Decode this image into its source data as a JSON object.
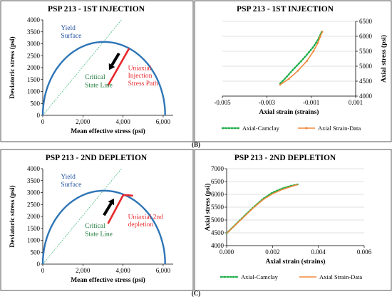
{
  "captions": [
    "(B)",
    "(C)"
  ],
  "colors": {
    "yield": "#2e75b6",
    "csl": "#5bc28c",
    "stress_path": "#e8282b",
    "arrow": "#000000",
    "camclay": "#1fae4a",
    "data": "#f0883a",
    "blue_text": "#1f4e9c",
    "green_text": "#1e7a3a",
    "red_text": "#e8282b"
  },
  "chart_data": [
    {
      "id": "b-left",
      "type": "line",
      "title": "PSP 213 - 1ST INJECTION",
      "xlabel": "Mean effective stress (psi)",
      "ylabel": "Deviatoric stress (psi)",
      "xlim": [
        0,
        6500
      ],
      "ylim": [
        0,
        4000
      ],
      "xticks": [
        0,
        2000,
        4000,
        6000
      ],
      "xtick_labels": [
        "0",
        "2,000",
        "4,000",
        "6,000"
      ],
      "yticks": [
        0,
        500,
        1000,
        1500,
        2000,
        2500,
        3000,
        3500,
        4000
      ],
      "ytick_labels": [
        "0",
        "500",
        "1000",
        "1500",
        "2000",
        "2500",
        "3000",
        "3500",
        "4000"
      ],
      "yield_surface": {
        "p0": 6100,
        "q_peak": 3080
      },
      "critical_state_line": {
        "slope": 1.02
      },
      "stress_path": {
        "x": [
          3250,
          4300
        ],
        "y": [
          1250,
          2800
        ]
      },
      "arrow": {
        "from": [
          3800,
          2600
        ],
        "to": [
          3300,
          1900
        ]
      },
      "annotations": [
        {
          "text": "Yield",
          "x": 900,
          "y": 3580,
          "color": "blue"
        },
        {
          "text": "Surface",
          "x": 900,
          "y": 3250,
          "color": "blue"
        },
        {
          "text": "Critical",
          "x": 2100,
          "y": 1520,
          "color": "green"
        },
        {
          "text": "State Line",
          "x": 2100,
          "y": 1180,
          "color": "green"
        },
        {
          "text": "Uniaxial",
          "x": 4250,
          "y": 1900,
          "color": "red"
        },
        {
          "text": "Injection",
          "x": 4250,
          "y": 1580,
          "color": "red"
        },
        {
          "text": "Stress Path",
          "x": 4250,
          "y": 1260,
          "color": "red"
        }
      ]
    },
    {
      "id": "b-right",
      "type": "line",
      "title": "PSP 213 - 1ST INJECTION",
      "xlabel": "Axial strain (strains)",
      "ylabel": "Axial stress (psi)",
      "y_axis_side": "right",
      "xlim": [
        -0.005,
        0.001
      ],
      "ylim": [
        4000,
        6500
      ],
      "xticks": [
        -0.005,
        -0.003,
        -0.001,
        0.001
      ],
      "xtick_labels": [
        "-0.005",
        "-0.003",
        "-0.001",
        "0.001"
      ],
      "yticks": [
        4000,
        4500,
        5000,
        5500,
        6000,
        6500
      ],
      "ytick_labels": [
        "4000",
        "4500",
        "5000",
        "5500",
        "6000",
        "6500"
      ],
      "legend_position": "bottom",
      "series": [
        {
          "name": "Axial-Camclay",
          "style": "dotted",
          "x": [
            -0.0024,
            -0.0021,
            -0.0018,
            -0.0015,
            -0.0012,
            -0.0009,
            -0.0007,
            -0.0006,
            -0.0005
          ],
          "y": [
            4420,
            4650,
            4900,
            5130,
            5380,
            5650,
            5880,
            6030,
            6200
          ]
        },
        {
          "name": "Axial Strain-Data",
          "style": "line-marker",
          "x": [
            -0.0024,
            -0.002,
            -0.0016,
            -0.0012,
            -0.0009,
            -0.0007,
            -0.0006,
            -0.0005
          ],
          "y": [
            4380,
            4580,
            4850,
            5170,
            5500,
            5780,
            5980,
            6150
          ]
        }
      ]
    },
    {
      "id": "c-left",
      "type": "line",
      "title": "PSP 213 - 2ND DEPLETION",
      "xlabel": "Mean effective stress (psi)",
      "ylabel": "Deviatoric stress (psi)",
      "xlim": [
        0,
        6500
      ],
      "ylim": [
        0,
        4000
      ],
      "xticks": [
        0,
        2000,
        4000,
        6000
      ],
      "xtick_labels": [
        "0",
        "2,000",
        "4,000",
        "6,000"
      ],
      "yticks": [
        0,
        500,
        1000,
        1500,
        2000,
        2500,
        3000,
        3500,
        4000
      ],
      "ytick_labels": [
        "0",
        "500",
        "1000",
        "1500",
        "2000",
        "2500",
        "3000",
        "3500",
        "4000"
      ],
      "yield_surface": {
        "p0": 6100,
        "q_peak": 3080
      },
      "critical_state_line": {
        "slope": 1.02
      },
      "stress_path": {
        "x": [
          3250,
          4000,
          4150,
          4500
        ],
        "y": [
          1700,
          2880,
          2900,
          2870
        ]
      },
      "arrow": {
        "from": [
          3050,
          2050
        ],
        "to": [
          3550,
          2750
        ]
      },
      "annotations": [
        {
          "text": "Yield",
          "x": 900,
          "y": 3580,
          "color": "blue"
        },
        {
          "text": "Surface",
          "x": 900,
          "y": 3250,
          "color": "blue"
        },
        {
          "text": "Critical",
          "x": 2100,
          "y": 1520,
          "color": "green"
        },
        {
          "text": "State Line",
          "x": 2100,
          "y": 1180,
          "color": "green"
        },
        {
          "text": "Uniaxial 2nd",
          "x": 4250,
          "y": 1900,
          "color": "red"
        },
        {
          "text": "depletion",
          "x": 4250,
          "y": 1580,
          "color": "red"
        }
      ]
    },
    {
      "id": "c-right",
      "type": "line",
      "title": "PSP 213 - 2ND DEPLETION",
      "xlabel": "Axial strain (strains)",
      "ylabel": "Axial stress (psi)",
      "xlim": [
        0,
        0.006
      ],
      "ylim": [
        4000,
        7000
      ],
      "xticks": [
        0,
        0.002,
        0.004,
        0.006
      ],
      "xtick_labels": [
        "0.000",
        "0.002",
        "0.004",
        "0.006"
      ],
      "yticks": [
        4000,
        4500,
        5000,
        5500,
        6000,
        6500,
        7000
      ],
      "ytick_labels": [
        "4000",
        "4500",
        "5000",
        "5500",
        "6000",
        "6500",
        "7000"
      ],
      "legend_position": "bottom",
      "series": [
        {
          "name": "Axial-Camclay",
          "style": "dotted",
          "x": [
            0.0,
            0.0004,
            0.0008,
            0.0012,
            0.0016,
            0.002,
            0.0024,
            0.0028,
            0.0031
          ],
          "y": [
            4480,
            4830,
            5180,
            5520,
            5830,
            6070,
            6220,
            6330,
            6390
          ]
        },
        {
          "name": "Axial Strain-Data",
          "style": "line",
          "x": [
            0.0,
            0.0004,
            0.0008,
            0.0012,
            0.0016,
            0.002,
            0.0024,
            0.0028,
            0.0031
          ],
          "y": [
            4480,
            4820,
            5160,
            5500,
            5800,
            6020,
            6180,
            6300,
            6380
          ]
        }
      ]
    }
  ]
}
